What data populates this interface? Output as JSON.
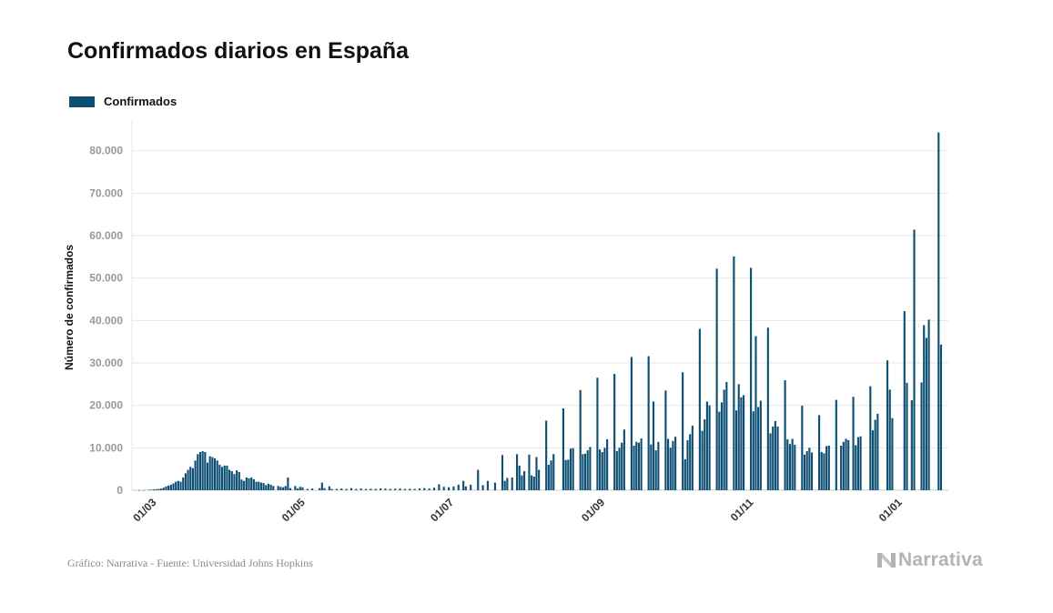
{
  "title": "Confirmados diarios en España",
  "source": "Gráfico: Narrativa - Fuente: Universidad Johns Hopkins",
  "brand": "Narrativa",
  "colors": {
    "bar": "#0e4f74",
    "grid": "#e6e6e6",
    "tick": "#999999",
    "brand": "#b3b3b3"
  },
  "chart_data": {
    "type": "bar",
    "title": "Confirmados diarios en España",
    "ylabel": "Número de confirmados",
    "xlabel": "",
    "ylim": [
      0,
      87000
    ],
    "y_ticks": [
      0,
      10000,
      20000,
      30000,
      40000,
      50000,
      60000,
      70000,
      80000
    ],
    "y_tick_labels": [
      "0",
      "10.000",
      "20.000",
      "30.000",
      "40.000",
      "50.000",
      "60.000",
      "70.000",
      "80.000"
    ],
    "x_ticks": [
      {
        "date": "2020-03-01",
        "label": "01/03"
      },
      {
        "date": "2020-05-01",
        "label": "01/05"
      },
      {
        "date": "2020-07-01",
        "label": "01/07"
      },
      {
        "date": "2020-09-01",
        "label": "01/09"
      },
      {
        "date": "2020-11-01",
        "label": "01/11"
      },
      {
        "date": "2021-01-01",
        "label": "01/01"
      }
    ],
    "legend": "top-left",
    "grid": true,
    "series": [
      {
        "name": "Confirmados",
        "points": [
          [
            "2020-02-25",
            30
          ],
          [
            "2020-02-27",
            60
          ],
          [
            "2020-02-29",
            120
          ],
          [
            "2020-03-01",
            150
          ],
          [
            "2020-03-02",
            200
          ],
          [
            "2020-03-03",
            250
          ],
          [
            "2020-03-04",
            300
          ],
          [
            "2020-03-05",
            400
          ],
          [
            "2020-03-06",
            600
          ],
          [
            "2020-03-07",
            900
          ],
          [
            "2020-03-08",
            1100
          ],
          [
            "2020-03-09",
            1300
          ],
          [
            "2020-03-10",
            1600
          ],
          [
            "2020-03-11",
            2000
          ],
          [
            "2020-03-12",
            2200
          ],
          [
            "2020-03-13",
            2000
          ],
          [
            "2020-03-14",
            3000
          ],
          [
            "2020-03-15",
            4000
          ],
          [
            "2020-03-16",
            4800
          ],
          [
            "2020-03-17",
            5500
          ],
          [
            "2020-03-18",
            5200
          ],
          [
            "2020-03-19",
            7000
          ],
          [
            "2020-03-20",
            8500
          ],
          [
            "2020-03-21",
            9000
          ],
          [
            "2020-03-22",
            9200
          ],
          [
            "2020-03-23",
            9000
          ],
          [
            "2020-03-24",
            6500
          ],
          [
            "2020-03-25",
            8000
          ],
          [
            "2020-03-26",
            7800
          ],
          [
            "2020-03-27",
            7500
          ],
          [
            "2020-03-28",
            7000
          ],
          [
            "2020-03-29",
            6000
          ],
          [
            "2020-03-30",
            5500
          ],
          [
            "2020-03-31",
            5800
          ],
          [
            "2020-04-01",
            5800
          ],
          [
            "2020-04-02",
            4800
          ],
          [
            "2020-04-03",
            4500
          ],
          [
            "2020-04-04",
            3800
          ],
          [
            "2020-04-05",
            4700
          ],
          [
            "2020-04-06",
            4300
          ],
          [
            "2020-04-07",
            2500
          ],
          [
            "2020-04-08",
            2200
          ],
          [
            "2020-04-09",
            3000
          ],
          [
            "2020-04-10",
            2800
          ],
          [
            "2020-04-11",
            3000
          ],
          [
            "2020-04-12",
            2600
          ],
          [
            "2020-04-13",
            2000
          ],
          [
            "2020-04-14",
            2000
          ],
          [
            "2020-04-15",
            1800
          ],
          [
            "2020-04-16",
            1700
          ],
          [
            "2020-04-17",
            1200
          ],
          [
            "2020-04-18",
            1500
          ],
          [
            "2020-04-19",
            1300
          ],
          [
            "2020-04-20",
            1000
          ],
          [
            "2020-04-22",
            1000
          ],
          [
            "2020-04-23",
            800
          ],
          [
            "2020-04-24",
            700
          ],
          [
            "2020-04-25",
            1000
          ],
          [
            "2020-04-26",
            3000
          ],
          [
            "2020-04-27",
            500
          ],
          [
            "2020-04-29",
            1000
          ],
          [
            "2020-04-30",
            400
          ],
          [
            "2020-05-01",
            800
          ],
          [
            "2020-05-02",
            700
          ],
          [
            "2020-05-04",
            300
          ],
          [
            "2020-05-06",
            400
          ],
          [
            "2020-05-09",
            500
          ],
          [
            "2020-05-10",
            1800
          ],
          [
            "2020-05-11",
            500
          ],
          [
            "2020-05-13",
            900
          ],
          [
            "2020-05-14",
            300
          ],
          [
            "2020-05-16",
            300
          ],
          [
            "2020-05-18",
            400
          ],
          [
            "2020-05-20",
            300
          ],
          [
            "2020-05-22",
            500
          ],
          [
            "2020-05-24",
            300
          ],
          [
            "2020-05-26",
            400
          ],
          [
            "2020-05-28",
            300
          ],
          [
            "2020-05-30",
            350
          ],
          [
            "2020-06-01",
            300
          ],
          [
            "2020-06-03",
            400
          ],
          [
            "2020-06-05",
            400
          ],
          [
            "2020-06-07",
            300
          ],
          [
            "2020-06-09",
            350
          ],
          [
            "2020-06-11",
            400
          ],
          [
            "2020-06-13",
            300
          ],
          [
            "2020-06-15",
            350
          ],
          [
            "2020-06-17",
            300
          ],
          [
            "2020-06-19",
            400
          ],
          [
            "2020-06-21",
            500
          ],
          [
            "2020-06-23",
            400
          ],
          [
            "2020-06-25",
            600
          ],
          [
            "2020-06-27",
            1400
          ],
          [
            "2020-06-29",
            800
          ],
          [
            "2020-07-01",
            700
          ],
          [
            "2020-07-03",
            900
          ],
          [
            "2020-07-05",
            1300
          ],
          [
            "2020-07-07",
            2200
          ],
          [
            "2020-07-08",
            900
          ],
          [
            "2020-07-10",
            1300
          ],
          [
            "2020-07-13",
            4800
          ],
          [
            "2020-07-15",
            1200
          ],
          [
            "2020-07-17",
            2200
          ],
          [
            "2020-07-20",
            1800
          ],
          [
            "2020-07-23",
            8300
          ],
          [
            "2020-07-24",
            2200
          ],
          [
            "2020-07-25",
            2900
          ],
          [
            "2020-07-27",
            3000
          ],
          [
            "2020-07-29",
            8500
          ],
          [
            "2020-07-30",
            5800
          ],
          [
            "2020-07-31",
            3500
          ],
          [
            "2020-08-01",
            4500
          ],
          [
            "2020-08-03",
            8400
          ],
          [
            "2020-08-04",
            3500
          ],
          [
            "2020-08-05",
            3200
          ],
          [
            "2020-08-06",
            7800
          ],
          [
            "2020-08-07",
            4800
          ],
          [
            "2020-08-10",
            16400
          ],
          [
            "2020-08-11",
            6000
          ],
          [
            "2020-08-12",
            7000
          ],
          [
            "2020-08-13",
            8500
          ],
          [
            "2020-08-17",
            19300
          ],
          [
            "2020-08-18",
            7100
          ],
          [
            "2020-08-19",
            7200
          ],
          [
            "2020-08-20",
            9800
          ],
          [
            "2020-08-21",
            9900
          ],
          [
            "2020-08-24",
            23600
          ],
          [
            "2020-08-25",
            8500
          ],
          [
            "2020-08-26",
            8600
          ],
          [
            "2020-08-27",
            9400
          ],
          [
            "2020-08-28",
            10200
          ],
          [
            "2020-08-31",
            26500
          ],
          [
            "2020-09-01",
            9600
          ],
          [
            "2020-09-02",
            9000
          ],
          [
            "2020-09-03",
            10000
          ],
          [
            "2020-09-04",
            12000
          ],
          [
            "2020-09-07",
            27400
          ],
          [
            "2020-09-08",
            9200
          ],
          [
            "2020-09-09",
            10000
          ],
          [
            "2020-09-10",
            11200
          ],
          [
            "2020-09-11",
            14300
          ],
          [
            "2020-09-14",
            31400
          ],
          [
            "2020-09-15",
            10500
          ],
          [
            "2020-09-16",
            11400
          ],
          [
            "2020-09-17",
            11200
          ],
          [
            "2020-09-18",
            12200
          ],
          [
            "2020-09-21",
            31600
          ],
          [
            "2020-09-22",
            10800
          ],
          [
            "2020-09-23",
            20900
          ],
          [
            "2020-09-24",
            9400
          ],
          [
            "2020-09-25",
            11400
          ],
          [
            "2020-09-28",
            23500
          ],
          [
            "2020-09-29",
            12100
          ],
          [
            "2020-09-30",
            10000
          ],
          [
            "2020-10-01",
            11600
          ],
          [
            "2020-10-02",
            12600
          ],
          [
            "2020-10-05",
            27800
          ],
          [
            "2020-10-06",
            7300
          ],
          [
            "2020-10-07",
            11800
          ],
          [
            "2020-10-08",
            13200
          ],
          [
            "2020-10-09",
            15200
          ],
          [
            "2020-10-12",
            38000
          ],
          [
            "2020-10-13",
            14000
          ],
          [
            "2020-10-14",
            16700
          ],
          [
            "2020-10-15",
            20900
          ],
          [
            "2020-10-16",
            20000
          ],
          [
            "2020-10-19",
            52200
          ],
          [
            "2020-10-20",
            18500
          ],
          [
            "2020-10-21",
            20700
          ],
          [
            "2020-10-22",
            23700
          ],
          [
            "2020-10-23",
            25500
          ],
          [
            "2020-10-26",
            55100
          ],
          [
            "2020-10-27",
            18800
          ],
          [
            "2020-10-28",
            25000
          ],
          [
            "2020-10-29",
            21900
          ],
          [
            "2020-10-30",
            22400
          ],
          [
            "2020-11-02",
            52400
          ],
          [
            "2020-11-03",
            18600
          ],
          [
            "2020-11-04",
            36300
          ],
          [
            "2020-11-05",
            19600
          ],
          [
            "2020-11-06",
            21100
          ],
          [
            "2020-11-09",
            38300
          ],
          [
            "2020-11-10",
            13400
          ],
          [
            "2020-11-11",
            15000
          ],
          [
            "2020-11-12",
            16300
          ],
          [
            "2020-11-13",
            15000
          ],
          [
            "2020-11-16",
            25900
          ],
          [
            "2020-11-17",
            12000
          ],
          [
            "2020-11-18",
            10900
          ],
          [
            "2020-11-19",
            12100
          ],
          [
            "2020-11-20",
            10700
          ],
          [
            "2020-11-23",
            19900
          ],
          [
            "2020-11-24",
            8400
          ],
          [
            "2020-11-25",
            9200
          ],
          [
            "2020-11-26",
            10000
          ],
          [
            "2020-11-27",
            8900
          ],
          [
            "2020-11-30",
            17700
          ],
          [
            "2020-12-01",
            9000
          ],
          [
            "2020-12-02",
            8700
          ],
          [
            "2020-12-03",
            10400
          ],
          [
            "2020-12-04",
            10500
          ],
          [
            "2020-12-07",
            21300
          ],
          [
            "2020-12-09",
            10500
          ],
          [
            "2020-12-10",
            11400
          ],
          [
            "2020-12-11",
            12100
          ],
          [
            "2020-12-12",
            11800
          ],
          [
            "2020-12-14",
            22000
          ],
          [
            "2020-12-15",
            10600
          ],
          [
            "2020-12-16",
            12500
          ],
          [
            "2020-12-17",
            12700
          ],
          [
            "2020-12-21",
            24500
          ],
          [
            "2020-12-22",
            14100
          ],
          [
            "2020-12-23",
            16600
          ],
          [
            "2020-12-24",
            18000
          ],
          [
            "2020-12-28",
            30600
          ],
          [
            "2020-12-29",
            23700
          ],
          [
            "2020-12-30",
            17000
          ],
          [
            "2021-01-04",
            42200
          ],
          [
            "2021-01-05",
            25300
          ],
          [
            "2021-01-07",
            21200
          ],
          [
            "2021-01-08",
            61400
          ],
          [
            "2021-01-11",
            25400
          ],
          [
            "2021-01-12",
            38900
          ],
          [
            "2021-01-13",
            35900
          ],
          [
            "2021-01-14",
            40200
          ],
          [
            "2021-01-18",
            84300
          ],
          [
            "2021-01-19",
            34300
          ]
        ]
      }
    ]
  }
}
